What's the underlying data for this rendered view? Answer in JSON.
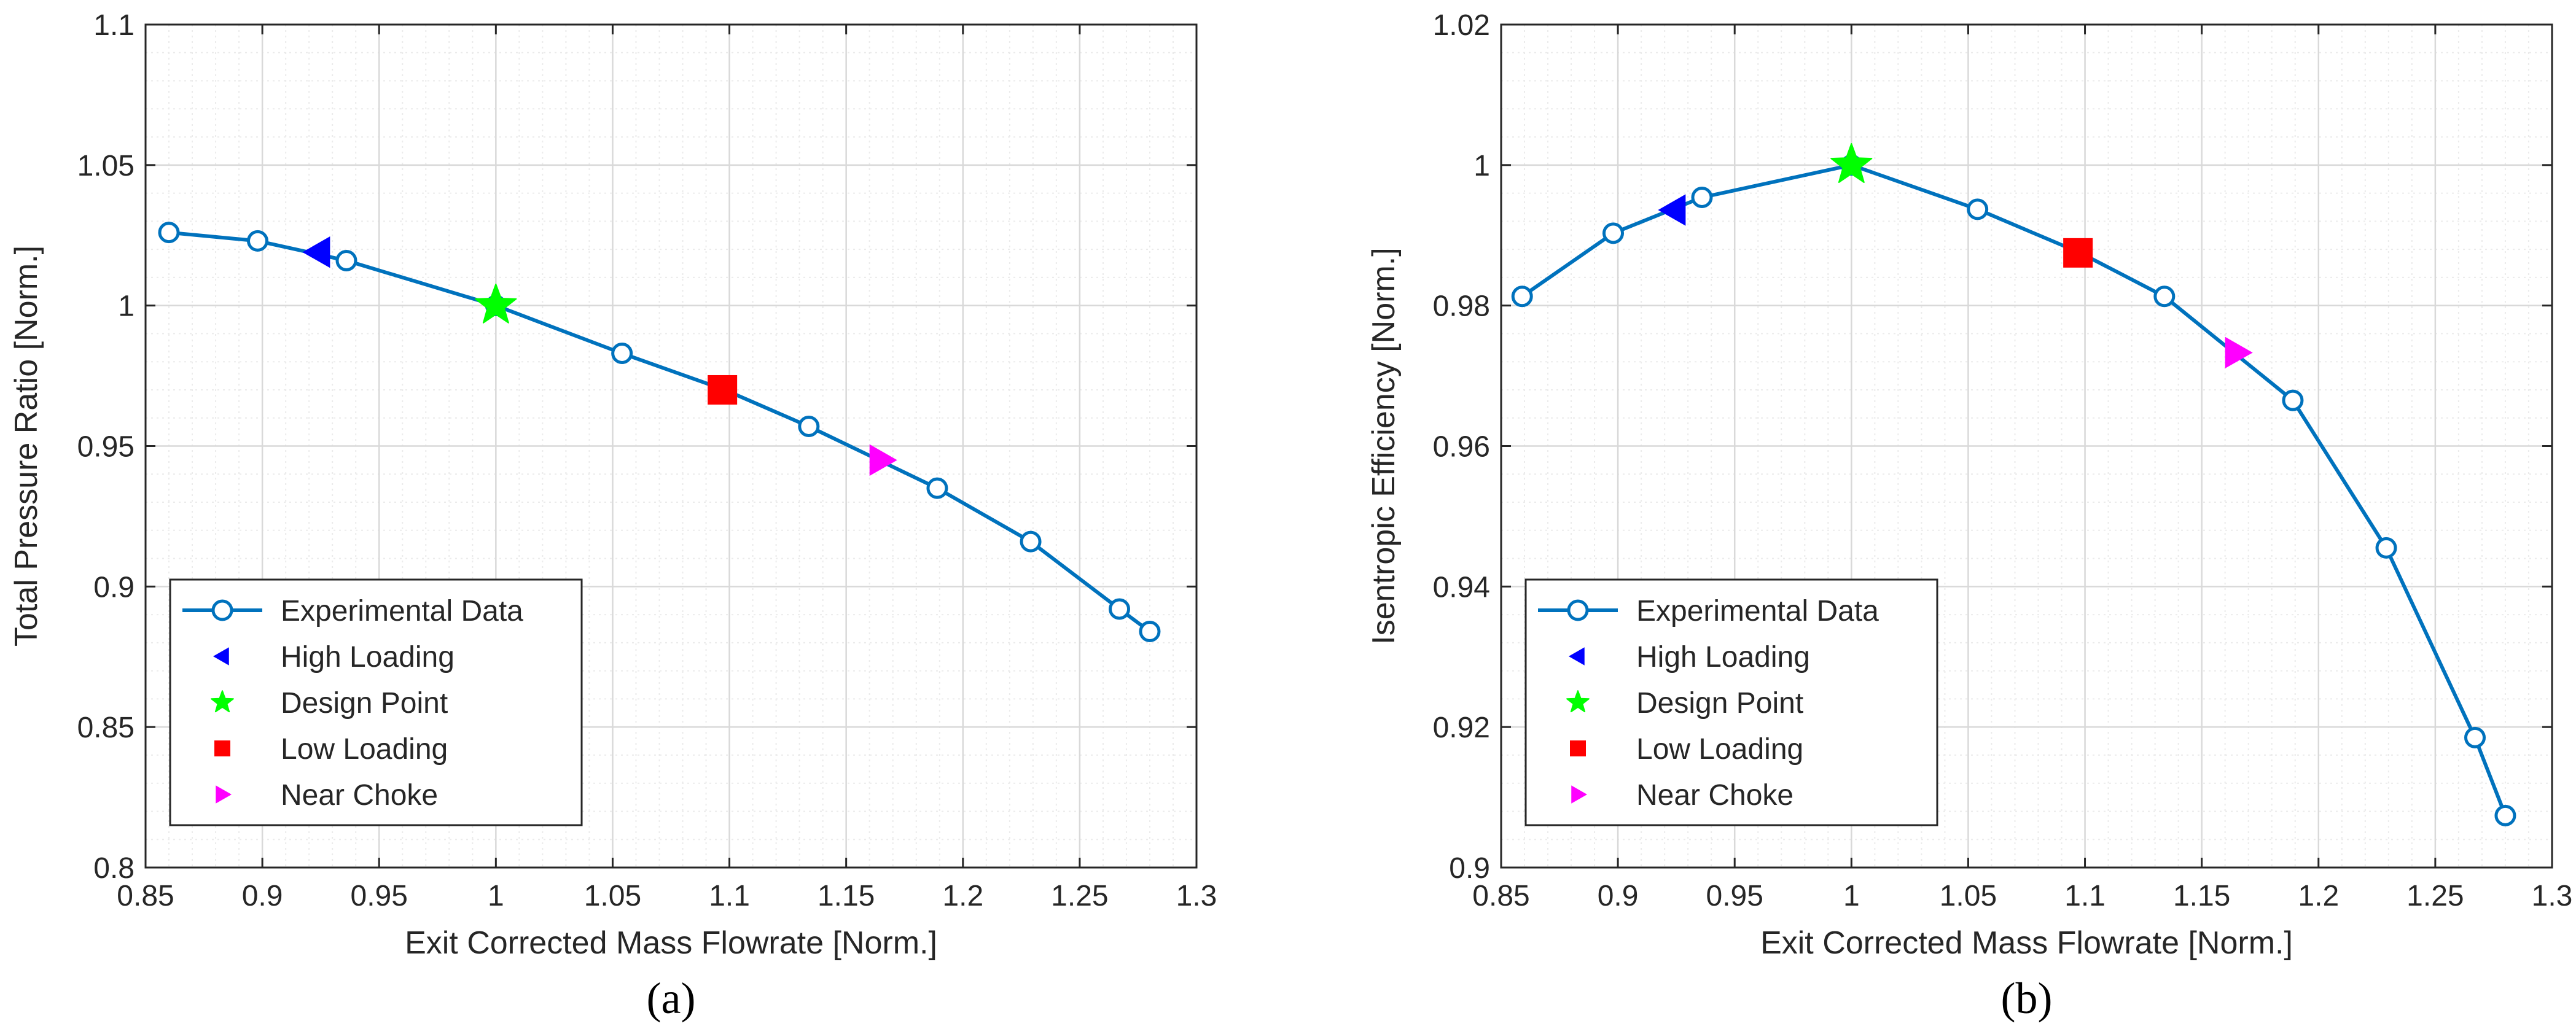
{
  "colors": {
    "series": "#0072BD",
    "high_loading": "#0000FF",
    "design_point": "#00FF00",
    "low_loading": "#FF0000",
    "near_choke": "#FF00FF",
    "grid": "#d9d9d9",
    "minor_grid": "#ebebeb",
    "axis": "#262626"
  },
  "chart_data": [
    {
      "type": "line",
      "caption": "(a)",
      "xlabel": "Exit Corrected Mass Flowrate [Norm.]",
      "ylabel": "Total Pressure Ratio [Norm.]",
      "xlim": [
        0.85,
        1.3
      ],
      "ylim": [
        0.8,
        1.1
      ],
      "xticks": [
        0.85,
        0.9,
        0.95,
        1,
        1.05,
        1.1,
        1.15,
        1.2,
        1.25,
        1.3
      ],
      "xtick_labels": [
        "0.85",
        "0.9",
        "0.95",
        "1",
        "1.05",
        "1.1",
        "1.15",
        "1.2",
        "1.25",
        "1.3"
      ],
      "yticks": [
        0.8,
        0.85,
        0.9,
        0.95,
        1,
        1.05,
        1.1
      ],
      "ytick_labels": [
        "0.8",
        "0.85",
        "0.9",
        "0.95",
        "1",
        "1.05",
        "1.1"
      ],
      "grid": true,
      "legend_position": "bottom-left",
      "series": [
        {
          "name": "Experimental Data",
          "x": [
            0.86,
            0.898,
            0.936,
            1.0,
            1.054,
            1.098,
            1.134,
            1.189,
            1.229,
            1.267,
            1.28
          ],
          "y": [
            1.026,
            1.023,
            1.016,
            1.0,
            0.983,
            0.97,
            0.957,
            0.935,
            0.916,
            0.892,
            0.884
          ]
        }
      ],
      "markers": [
        {
          "name": "High Loading",
          "shape": "triangle-left",
          "x": 0.924,
          "y": 1.019,
          "color_key": "high_loading"
        },
        {
          "name": "Design Point",
          "shape": "star",
          "x": 1.0,
          "y": 1.0,
          "color_key": "design_point"
        },
        {
          "name": "Low Loading",
          "shape": "square",
          "x": 1.097,
          "y": 0.97,
          "color_key": "low_loading"
        },
        {
          "name": "Near Choke",
          "shape": "triangle-right",
          "x": 1.165,
          "y": 0.945,
          "color_key": "near_choke"
        }
      ]
    },
    {
      "type": "line",
      "caption": "(b)",
      "xlabel": "Exit Corrected Mass Flowrate [Norm.]",
      "ylabel": "Isentropic Efficiency [Norm.]",
      "xlim": [
        0.85,
        1.3
      ],
      "ylim": [
        0.9,
        1.02
      ],
      "xticks": [
        0.85,
        0.9,
        0.95,
        1,
        1.05,
        1.1,
        1.15,
        1.2,
        1.25,
        1.3
      ],
      "xtick_labels": [
        "0.85",
        "0.9",
        "0.95",
        "1",
        "1.05",
        "1.1",
        "1.15",
        "1.2",
        "1.25",
        "1.3"
      ],
      "yticks": [
        0.9,
        0.92,
        0.94,
        0.96,
        0.98,
        1,
        1.02
      ],
      "ytick_labels": [
        "0.9",
        "0.92",
        "0.94",
        "0.96",
        "0.98",
        "1",
        "1.02"
      ],
      "grid": true,
      "legend_position": "bottom-left",
      "series": [
        {
          "name": "Experimental Data",
          "x": [
            0.859,
            0.898,
            0.936,
            1.0,
            1.054,
            1.098,
            1.134,
            1.189,
            1.229,
            1.267,
            1.28
          ],
          "y": [
            0.9813,
            0.9903,
            0.9954,
            1.0,
            0.9937,
            0.9875,
            0.9813,
            0.9665,
            0.9455,
            0.9185,
            0.9074
          ]
        }
      ],
      "markers": [
        {
          "name": "High Loading",
          "shape": "triangle-left",
          "x": 0.924,
          "y": 0.9936,
          "color_key": "high_loading"
        },
        {
          "name": "Design Point",
          "shape": "star",
          "x": 1.0,
          "y": 1.0,
          "color_key": "design_point"
        },
        {
          "name": "Low Loading",
          "shape": "square",
          "x": 1.097,
          "y": 0.9875,
          "color_key": "low_loading"
        },
        {
          "name": "Near Choke",
          "shape": "triangle-right",
          "x": 1.165,
          "y": 0.9733,
          "color_key": "near_choke"
        }
      ]
    }
  ]
}
